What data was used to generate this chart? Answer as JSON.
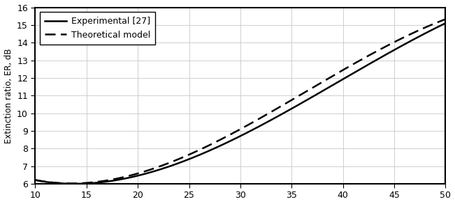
{
  "xlim": [
    10,
    50
  ],
  "ylim": [
    6,
    16
  ],
  "xticks": [
    10,
    15,
    20,
    25,
    30,
    35,
    40,
    45,
    50
  ],
  "yticks": [
    6,
    7,
    8,
    9,
    10,
    11,
    12,
    13,
    14,
    15,
    16
  ],
  "ylabel": "Extinction ratio, ER, dB",
  "xlabel": "",
  "legend_entries": [
    "Experimental [27]",
    "Theoretical model"
  ],
  "line_solid_color": "#000000",
  "line_dashed_color": "#000000",
  "background_color": "#ffffff",
  "grid_color": "#c8c8c8",
  "figsize": [
    6.51,
    2.93
  ],
  "dpi": 100,
  "exp_points_x": [
    10,
    15,
    20,
    25,
    30,
    35,
    40,
    45,
    50
  ],
  "exp_points_y": [
    6.08,
    6.2,
    6.6,
    7.3,
    8.5,
    10.2,
    12.1,
    13.7,
    15.0
  ],
  "theo_points_x": [
    10,
    15,
    20,
    25,
    30,
    35,
    40,
    45,
    50
  ],
  "theo_points_y": [
    6.08,
    6.25,
    6.75,
    7.55,
    8.85,
    10.7,
    12.6,
    14.2,
    15.2
  ]
}
